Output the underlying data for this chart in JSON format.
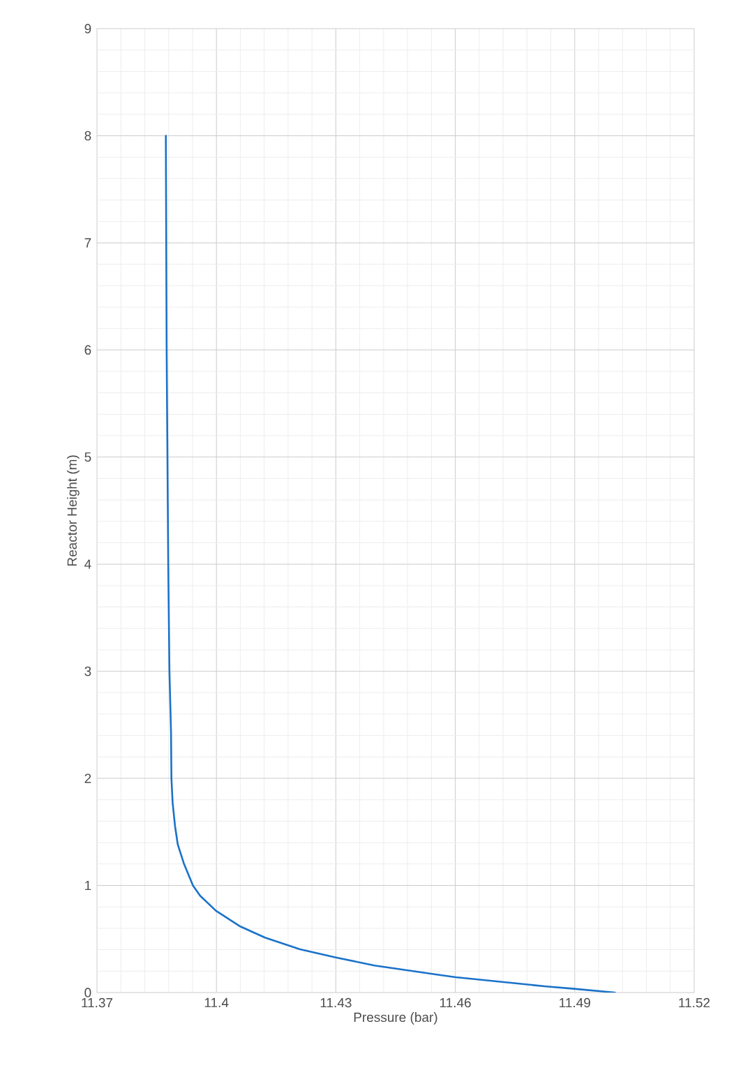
{
  "chart_data": {
    "type": "line",
    "xlabel": "Pressure (bar)",
    "ylabel": "Reactor Height (m)",
    "xlim": [
      11.37,
      11.52
    ],
    "xticks": [
      11.37,
      11.4,
      11.43,
      11.46,
      11.49,
      11.52
    ],
    "ylim": [
      0,
      9
    ],
    "yticks": [
      0,
      1,
      2,
      3,
      4,
      5,
      6,
      7,
      8,
      9
    ],
    "grid": true,
    "marker": "none",
    "line_style": "solid",
    "series": [
      {
        "color": "#1a72c9",
        "x": [
          11.5001,
          11.4899,
          11.4829,
          11.4601,
          11.456,
          11.4397,
          11.43,
          11.421,
          11.4122,
          11.4058,
          11.3999,
          11.3959,
          11.3941,
          11.3918,
          11.3903,
          11.3896,
          11.389,
          11.3887,
          11.3886,
          11.3882,
          11.3879,
          11.3877,
          11.3875,
          11.3873
        ],
        "values": [
          0,
          0.035,
          0.057,
          0.143,
          0.165,
          0.252,
          0.328,
          0.404,
          0.513,
          0.621,
          0.763,
          0.904,
          1.0,
          1.208,
          1.382,
          1.556,
          1.773,
          2.0,
          2.43,
          3.0,
          4.0,
          5.0,
          6.0,
          8.0
        ]
      }
    ]
  }
}
